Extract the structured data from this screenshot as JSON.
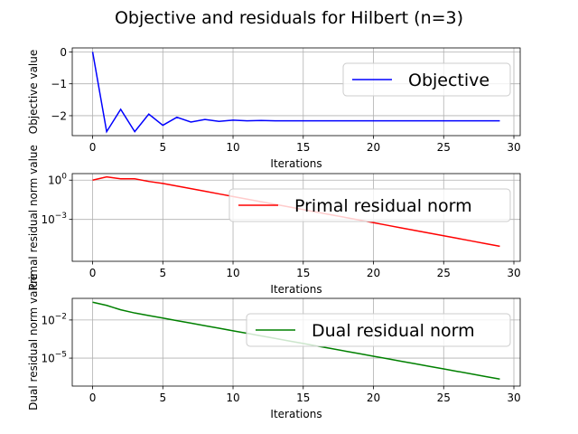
{
  "figure": {
    "title": "Objective and residuals for Hilbert (n=3)"
  },
  "chart_data": [
    {
      "type": "line",
      "title": "",
      "xlabel": "Iterations",
      "ylabel": "Objective value",
      "yscale": "linear",
      "xlim": [
        -1.45,
        30.45
      ],
      "ylim": [
        -2.625,
        0.125
      ],
      "xticks": [
        0,
        5,
        10,
        15,
        20,
        25,
        30
      ],
      "yticks": [
        0,
        -1,
        -2
      ],
      "ytick_labels": [
        "0",
        "−1",
        "−2"
      ],
      "grid": true,
      "legend": {
        "placement": "top-right",
        "entries": [
          "Objective"
        ]
      },
      "series": [
        {
          "name": "Objective",
          "color": "#0000ff",
          "x": [
            0,
            1,
            2,
            3,
            4,
            5,
            6,
            7,
            8,
            9,
            10,
            11,
            12,
            13,
            14,
            15,
            16,
            17,
            18,
            19,
            20,
            21,
            22,
            23,
            24,
            25,
            26,
            27,
            28,
            29
          ],
          "values": [
            0,
            -2.5,
            -1.8,
            -2.5,
            -1.95,
            -2.3,
            -2.05,
            -2.2,
            -2.12,
            -2.18,
            -2.14,
            -2.16,
            -2.15,
            -2.16,
            -2.16,
            -2.16,
            -2.16,
            -2.16,
            -2.16,
            -2.16,
            -2.16,
            -2.16,
            -2.16,
            -2.16,
            -2.16,
            -2.16,
            -2.16,
            -2.16,
            -2.16,
            -2.16
          ]
        }
      ]
    },
    {
      "type": "line",
      "title": "",
      "xlabel": "Iterations",
      "ylabel": "Primal residual norm value",
      "yscale": "log",
      "xlim": [
        -1.45,
        30.45
      ],
      "ylim": [
        -6.2,
        0.5
      ],
      "xticks": [
        0,
        5,
        10,
        15,
        20,
        25,
        30
      ],
      "yticks": [
        0,
        -3
      ],
      "ytick_labels": [
        "10^0",
        "10^-3"
      ],
      "grid": true,
      "legend": {
        "placement": "top-right",
        "entries": [
          "Primal residual norm"
        ]
      },
      "series": [
        {
          "name": "Primal residual norm",
          "color": "#ff0000",
          "x": [
            0,
            1,
            2,
            3,
            4,
            5,
            6,
            7,
            8,
            9,
            10,
            11,
            12,
            13,
            14,
            15,
            16,
            17,
            18,
            19,
            20,
            21,
            22,
            23,
            24,
            25,
            26,
            27,
            28,
            29
          ],
          "log10_values": [
            0.0,
            0.25,
            0.1,
            0.1,
            -0.1,
            -0.25,
            -0.45,
            -0.65,
            -0.85,
            -1.05,
            -1.25,
            -1.45,
            -1.65,
            -1.85,
            -2.05,
            -2.25,
            -2.45,
            -2.65,
            -2.85,
            -3.05,
            -3.25,
            -3.45,
            -3.65,
            -3.85,
            -4.05,
            -4.25,
            -4.45,
            -4.65,
            -4.85,
            -5.05
          ]
        }
      ]
    },
    {
      "type": "line",
      "title": "",
      "xlabel": "Iterations",
      "ylabel": "Dual residual norm value",
      "yscale": "log",
      "xlim": [
        -1.45,
        30.45
      ],
      "ylim": [
        -7.2,
        -0.3
      ],
      "xticks": [
        0,
        5,
        10,
        15,
        20,
        25,
        30
      ],
      "yticks": [
        -2,
        -5
      ],
      "ytick_labels": [
        "10^-2",
        "10^-5"
      ],
      "grid": true,
      "legend": {
        "placement": "top-right",
        "entries": [
          "Dual residual norm"
        ]
      },
      "series": [
        {
          "name": "Dual residual norm",
          "color": "#008000",
          "x": [
            0,
            1,
            2,
            3,
            4,
            5,
            6,
            7,
            8,
            9,
            10,
            11,
            12,
            13,
            14,
            15,
            16,
            17,
            18,
            19,
            20,
            21,
            22,
            23,
            24,
            25,
            26,
            27,
            28,
            29
          ],
          "log10_values": [
            -0.6,
            -0.85,
            -1.2,
            -1.45,
            -1.65,
            -1.85,
            -2.05,
            -2.25,
            -2.45,
            -2.65,
            -2.85,
            -3.05,
            -3.25,
            -3.45,
            -3.65,
            -3.85,
            -4.05,
            -4.25,
            -4.45,
            -4.65,
            -4.85,
            -5.05,
            -5.25,
            -5.45,
            -5.65,
            -5.85,
            -6.05,
            -6.25,
            -6.45,
            -6.65
          ]
        }
      ]
    }
  ]
}
